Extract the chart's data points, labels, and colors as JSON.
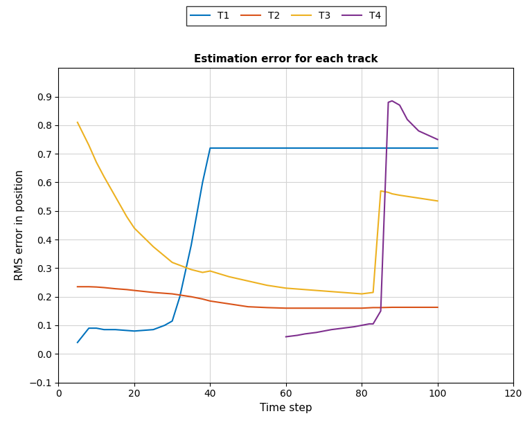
{
  "title": "Estimation error for each track",
  "xlabel": "Time step",
  "ylabel": "RMS error in position",
  "xlim": [
    0,
    120
  ],
  "ylim": [
    -0.1,
    1.0
  ],
  "xticks": [
    0,
    20,
    40,
    60,
    80,
    100,
    120
  ],
  "yticks": [
    -0.1,
    0.0,
    0.1,
    0.2,
    0.3,
    0.4,
    0.5,
    0.6,
    0.7,
    0.8,
    0.9
  ],
  "legend": [
    "T1",
    "T2",
    "T3",
    "T4"
  ],
  "colors": {
    "T1": "#0072BD",
    "T2": "#D95319",
    "T3": "#EDB120",
    "T4": "#7E2F8E"
  },
  "T1_x": [
    5,
    8,
    10,
    12,
    15,
    18,
    20,
    22,
    25,
    28,
    30,
    32,
    35,
    38,
    40,
    42,
    45,
    50,
    55,
    60,
    65,
    70,
    75,
    80,
    83,
    85,
    88,
    90,
    95,
    100
  ],
  "T1_y": [
    0.04,
    0.09,
    0.09,
    0.085,
    0.085,
    0.082,
    0.08,
    0.082,
    0.085,
    0.1,
    0.115,
    0.2,
    0.38,
    0.6,
    0.72,
    0.72,
    0.72,
    0.72,
    0.72,
    0.72,
    0.72,
    0.72,
    0.72,
    0.72,
    0.72,
    0.72,
    0.72,
    0.72,
    0.72,
    0.72
  ],
  "T2_x": [
    5,
    8,
    10,
    12,
    15,
    18,
    20,
    25,
    30,
    35,
    38,
    40,
    45,
    50,
    55,
    60,
    65,
    70,
    75,
    80,
    83,
    85,
    88,
    90,
    95,
    100
  ],
  "T2_y": [
    0.235,
    0.235,
    0.234,
    0.232,
    0.228,
    0.225,
    0.222,
    0.215,
    0.21,
    0.2,
    0.192,
    0.185,
    0.175,
    0.165,
    0.162,
    0.16,
    0.16,
    0.16,
    0.16,
    0.16,
    0.162,
    0.162,
    0.163,
    0.163,
    0.163,
    0.163
  ],
  "T3_x": [
    5,
    8,
    10,
    12,
    15,
    18,
    20,
    25,
    30,
    35,
    38,
    40,
    45,
    50,
    55,
    60,
    65,
    70,
    75,
    80,
    83,
    85,
    87,
    88,
    90,
    95,
    100
  ],
  "T3_y": [
    0.81,
    0.73,
    0.67,
    0.62,
    0.55,
    0.48,
    0.44,
    0.375,
    0.32,
    0.295,
    0.285,
    0.29,
    0.27,
    0.255,
    0.24,
    0.23,
    0.225,
    0.22,
    0.215,
    0.21,
    0.215,
    0.57,
    0.565,
    0.56,
    0.555,
    0.545,
    0.535
  ],
  "T4_x": [
    60,
    63,
    65,
    68,
    70,
    72,
    75,
    78,
    80,
    82,
    83,
    85,
    87,
    88,
    90,
    92,
    95,
    100
  ],
  "T4_y": [
    0.06,
    0.065,
    0.07,
    0.075,
    0.08,
    0.085,
    0.09,
    0.095,
    0.1,
    0.105,
    0.105,
    0.15,
    0.88,
    0.885,
    0.87,
    0.82,
    0.78,
    0.75
  ]
}
